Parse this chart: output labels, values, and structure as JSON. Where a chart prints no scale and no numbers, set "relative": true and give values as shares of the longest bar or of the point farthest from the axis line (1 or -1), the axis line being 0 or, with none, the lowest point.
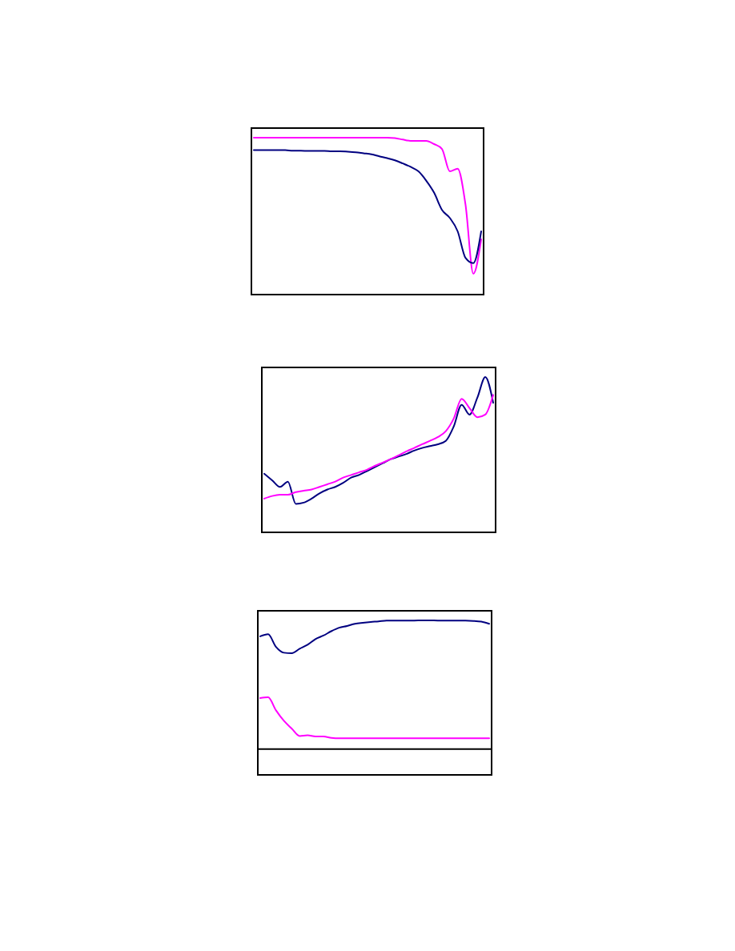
{
  "chart_data": [
    {
      "type": "line",
      "relative": true,
      "categories": [
        null,
        null,
        null,
        null,
        null,
        null,
        null,
        null,
        null,
        null,
        null,
        null,
        null,
        null,
        null,
        null,
        null,
        null,
        null,
        null,
        null,
        null,
        null,
        null,
        null,
        null,
        null,
        null,
        null,
        null
      ],
      "series": [
        {
          "color": "#ff00ff",
          "values": [
            1,
            1,
            1,
            1,
            1,
            1,
            1,
            1,
            1,
            1,
            1,
            1,
            1,
            1,
            1,
            1,
            1,
            1,
            0.997,
            0.988,
            0.98,
            0.98,
            0.98,
            0.959,
            0.928,
            0.784,
            0.801,
            0.571,
            0.128,
            0.349
          ]
        },
        {
          "color": "#000080",
          "values": [
            0.92,
            0.92,
            0.92,
            0.92,
            0.92,
            0.917,
            0.917,
            0.915,
            0.915,
            0.915,
            0.913,
            0.913,
            0.91,
            0.906,
            0.9,
            0.894,
            0.881,
            0.869,
            0.855,
            0.835,
            0.813,
            0.784,
            0.724,
            0.647,
            0.537,
            0.486,
            0.4,
            0.23,
            0.196,
            0.4
          ]
        }
      ]
    },
    {
      "type": "line",
      "relative": true,
      "categories": [
        null,
        null,
        null,
        null,
        null,
        null,
        null,
        null,
        null,
        null,
        null,
        null,
        null,
        null,
        null,
        null,
        null,
        null,
        null,
        null,
        null,
        null,
        null,
        null,
        null,
        null,
        null,
        null,
        null,
        null
      ],
      "series": [
        {
          "color": "#000080",
          "values": [
            0.374,
            0.332,
            0.289,
            0.323,
            0.179,
            0.187,
            0.213,
            0.247,
            0.272,
            0.289,
            0.315,
            0.349,
            0.366,
            0.391,
            0.417,
            0.442,
            0.468,
            0.485,
            0.502,
            0.524,
            0.541,
            0.553,
            0.565,
            0.587,
            0.68,
            0.82,
            0.757,
            0.867,
            1,
            0.833
          ]
        },
        {
          "color": "#ff00ff",
          "values": [
            0.213,
            0.23,
            0.238,
            0.238,
            0.255,
            0.264,
            0.272,
            0.289,
            0.306,
            0.323,
            0.349,
            0.366,
            0.383,
            0.4,
            0.425,
            0.446,
            0.468,
            0.493,
            0.519,
            0.541,
            0.565,
            0.587,
            0.612,
            0.65,
            0.731,
            0.859,
            0.799,
            0.74,
            0.757,
            0.884
          ]
        }
      ]
    },
    {
      "type": "line",
      "relative": true,
      "categories": [
        null,
        null,
        null,
        null,
        null,
        null,
        null,
        null,
        null,
        null,
        null,
        null,
        null,
        null,
        null,
        null,
        null,
        null,
        null,
        null,
        null,
        null,
        null,
        null,
        null,
        null,
        null,
        null,
        null,
        null
      ],
      "ref_lines": [
        {
          "axis": "y",
          "value": 0,
          "color": "#000000"
        }
      ],
      "series": [
        {
          "color": "#000080",
          "values": [
            0.876,
            0.892,
            0.794,
            0.749,
            0.745,
            0.78,
            0.811,
            0.855,
            0.882,
            0.916,
            0.943,
            0.957,
            0.974,
            0.982,
            0.988,
            0.992,
            0.998,
            0.998,
            0.998,
            0.998,
            1,
            1,
            1,
            0.998,
            0.998,
            0.998,
            0.998,
            0.996,
            0.99,
            0.974
          ]
        },
        {
          "color": "#ff00ff",
          "values": [
            0.397,
            0.403,
            0.301,
            0.22,
            0.159,
            0.102,
            0.108,
            0.098,
            0.098,
            0.088,
            0.084,
            0.084,
            0.084,
            0.084,
            0.084,
            0.084,
            0.084,
            0.084,
            0.084,
            0.084,
            0.084,
            0.084,
            0.084,
            0.084,
            0.084,
            0.084,
            0.084,
            0.084,
            0.084,
            0.084
          ]
        }
      ]
    }
  ]
}
